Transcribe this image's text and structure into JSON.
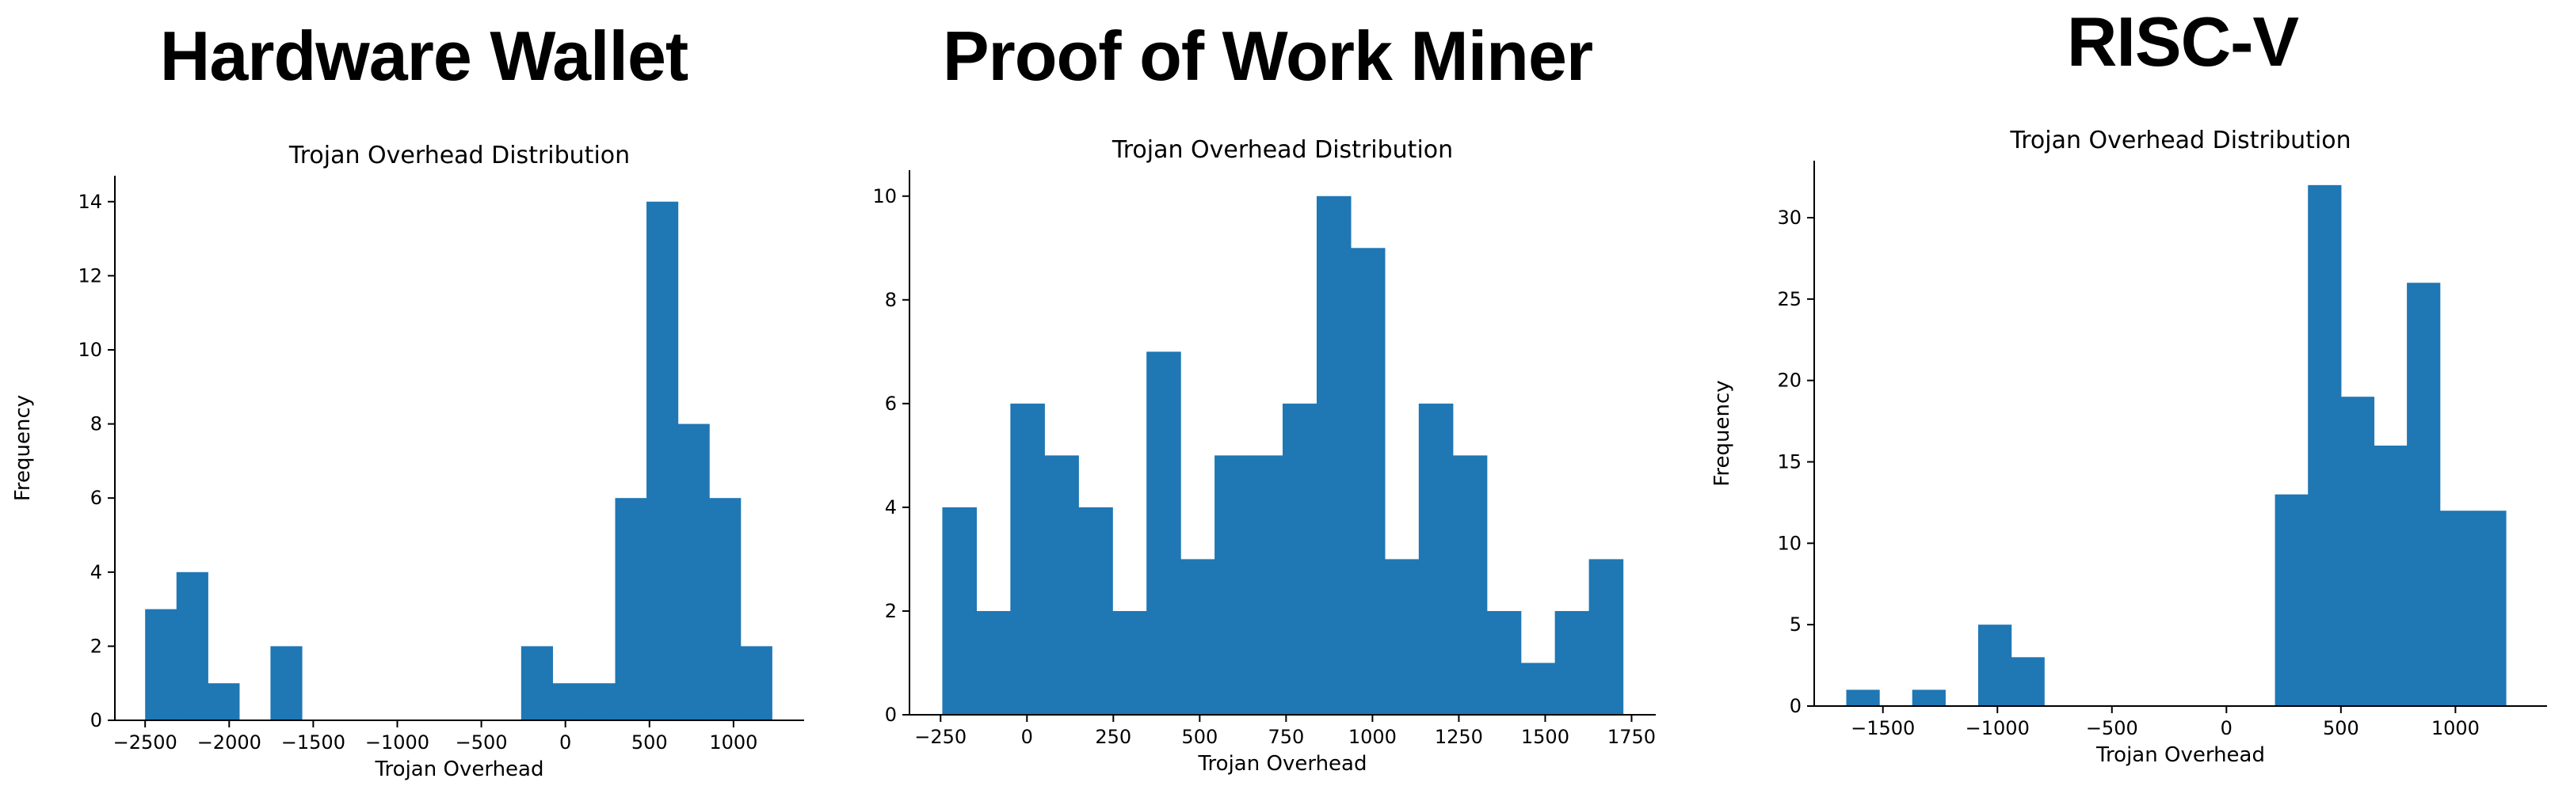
{
  "chart_data": [
    {
      "type": "bar",
      "heading": "Hardware Wallet",
      "title": "Trojan Overhead Distribution",
      "xlabel": "Trojan Overhead",
      "ylabel": "Frequency",
      "xlim": [
        -2680,
        1420
      ],
      "ylim": [
        0,
        14.7
      ],
      "xticks": [
        -2500,
        -2000,
        -1500,
        -1000,
        -500,
        0,
        500,
        1000
      ],
      "xtick_labels": [
        "−2500",
        "−2000",
        "−1500",
        "−1000",
        "−500",
        "0",
        "500",
        "1000"
      ],
      "yticks": [
        0,
        2,
        4,
        6,
        8,
        10,
        12,
        14
      ],
      "ytick_labels": [
        "0",
        "2",
        "4",
        "6",
        "8",
        "10",
        "12",
        "14"
      ],
      "bin_start": -2500,
      "bin_width": 186.4,
      "values": [
        3,
        4,
        1,
        0,
        2,
        0,
        0,
        0,
        0,
        0,
        0,
        0,
        2,
        1,
        1,
        6,
        14,
        8,
        6,
        2
      ],
      "color": "#1f77b4",
      "grid": false
    },
    {
      "type": "bar",
      "heading": "Proof of Work Miner",
      "title": "Trojan Overhead Distribution",
      "xlabel": "Trojan Overhead",
      "ylabel": "Frequency",
      "xlim": [
        -340,
        1820
      ],
      "ylim": [
        0,
        10.5
      ],
      "xticks": [
        -250,
        0,
        250,
        500,
        750,
        1000,
        1250,
        1500,
        1750
      ],
      "xtick_labels": [
        "−250",
        "0",
        "250",
        "500",
        "750",
        "1000",
        "1250",
        "1500",
        "1750"
      ],
      "yticks": [
        0,
        2,
        4,
        6,
        8,
        10
      ],
      "ytick_labels": [
        "0",
        "2",
        "4",
        "6",
        "8",
        "10"
      ],
      "bin_start": -245,
      "bin_width": 98.5,
      "values": [
        4,
        2,
        6,
        5,
        4,
        2,
        7,
        3,
        5,
        5,
        6,
        10,
        9,
        3,
        6,
        5,
        2,
        1,
        2,
        3
      ],
      "color": "#1f77b4",
      "grid": false
    },
    {
      "type": "bar",
      "heading": "RISC-V",
      "title": "Trojan Overhead Distribution",
      "xlabel": "Trojan Overhead",
      "ylabel": "Frequency",
      "xlim": [
        -1800,
        1400
      ],
      "ylim": [
        0,
        33.5
      ],
      "xticks": [
        -1500,
        -1000,
        -500,
        0,
        500,
        1000
      ],
      "xtick_labels": [
        "−1500",
        "−1000",
        "−500",
        "0",
        "500",
        "1000"
      ],
      "yticks": [
        0,
        5,
        10,
        15,
        20,
        25,
        30
      ],
      "ytick_labels": [
        "0",
        "5",
        "10",
        "15",
        "20",
        "25",
        "30"
      ],
      "bin_start": -1660,
      "bin_width": 144,
      "values": [
        1,
        0,
        1,
        0,
        5,
        3,
        0,
        0,
        0,
        0,
        0,
        0,
        0,
        13,
        32,
        19,
        16,
        26,
        12,
        12
      ],
      "color": "#1f77b4",
      "grid": false
    }
  ]
}
